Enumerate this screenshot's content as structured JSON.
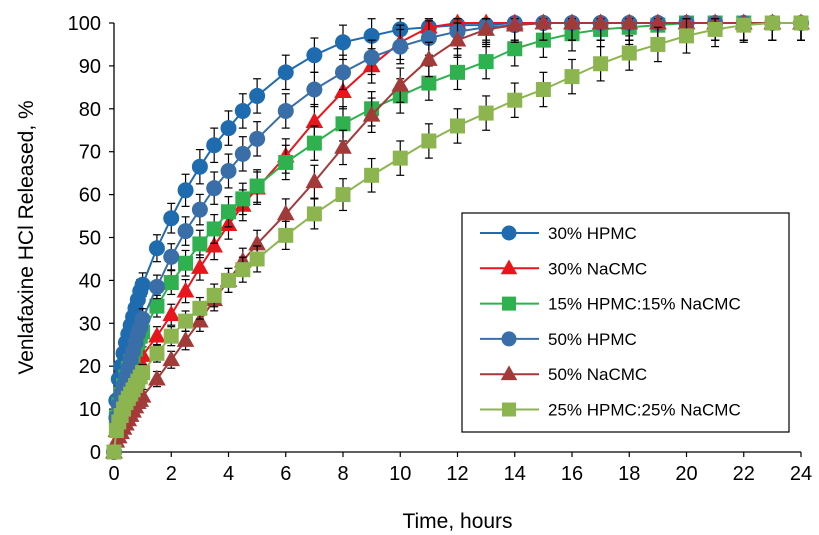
{
  "chart_data": {
    "type": "line",
    "title": "",
    "xlabel": "Time, hours",
    "ylabel": "Venlafaxine HCl Released, %",
    "xlim": [
      0,
      24
    ],
    "ylim": [
      0,
      100
    ],
    "x_ticks": [
      0,
      2,
      4,
      6,
      8,
      10,
      12,
      14,
      16,
      18,
      20,
      22,
      24
    ],
    "y_ticks": [
      0,
      10,
      20,
      30,
      40,
      50,
      60,
      70,
      80,
      90,
      100
    ],
    "grid": false,
    "error_bars": true,
    "legend_position": "right-middle",
    "series": [
      {
        "name": "30% HPMC",
        "marker": "circle",
        "color": "#1f6bb0",
        "x": [
          0,
          0.083,
          0.167,
          0.25,
          0.333,
          0.417,
          0.5,
          0.583,
          0.667,
          0.75,
          0.833,
          0.917,
          1,
          1.5,
          2,
          2.5,
          3,
          3.5,
          4,
          4.5,
          5,
          6,
          7,
          8,
          9,
          10,
          11,
          12,
          13,
          14,
          15,
          16,
          17,
          18,
          19,
          20,
          21,
          22,
          23,
          24
        ],
        "y": [
          0,
          12,
          17,
          20,
          23,
          25.5,
          27.5,
          29.5,
          31.5,
          33.5,
          35.5,
          37.5,
          39,
          47.5,
          54.5,
          61,
          66.5,
          71.5,
          75.5,
          79.5,
          83,
          88.5,
          92.5,
          95.5,
          97,
          98.5,
          99,
          99.5,
          99.5,
          100,
          100,
          100,
          100,
          100,
          100,
          100,
          100,
          100,
          100,
          100
        ]
      },
      {
        "name": "30% NaCMC",
        "marker": "triangle",
        "color": "#e8151d",
        "x": [
          0,
          0.083,
          0.167,
          0.25,
          0.333,
          0.417,
          0.5,
          0.583,
          0.667,
          0.75,
          0.833,
          0.917,
          1,
          1.5,
          2,
          2.5,
          3,
          3.5,
          4,
          4.5,
          5,
          6,
          7,
          8,
          9,
          10,
          11,
          12,
          13,
          14,
          15,
          16,
          17,
          18,
          19,
          20,
          21,
          22,
          23,
          24
        ],
        "y": [
          0,
          5,
          7,
          9,
          10.5,
          12,
          13.5,
          15,
          16.5,
          18,
          19.5,
          21,
          22.5,
          27,
          32,
          37.5,
          43,
          48,
          53,
          57.5,
          61.5,
          69,
          77,
          84,
          90,
          95.5,
          99,
          100,
          100,
          100,
          100,
          100,
          100,
          100,
          100,
          100,
          100,
          100,
          100,
          100
        ]
      },
      {
        "name": "15% HPMC:15% NaCMC",
        "marker": "square",
        "color": "#2eb14e",
        "x": [
          0,
          0.083,
          0.167,
          0.25,
          0.333,
          0.417,
          0.5,
          0.583,
          0.667,
          0.75,
          0.833,
          0.917,
          1,
          1.5,
          2,
          2.5,
          3,
          3.5,
          4,
          4.5,
          5,
          6,
          7,
          8,
          9,
          10,
          11,
          12,
          13,
          14,
          15,
          16,
          17,
          18,
          19,
          20,
          21,
          22,
          23,
          24
        ],
        "y": [
          0,
          8,
          11,
          13.5,
          15.5,
          17.5,
          19.5,
          21,
          22.5,
          24,
          25.5,
          27,
          28,
          34,
          39.5,
          44,
          48.5,
          52,
          56,
          59,
          62,
          67.5,
          72,
          76.5,
          80,
          83,
          86,
          88.5,
          91,
          94,
          96,
          97.5,
          98.5,
          99,
          99.5,
          100,
          100,
          100,
          100,
          100
        ]
      },
      {
        "name": "50% HPMC",
        "marker": "circle",
        "color": "#3a6ea8",
        "x": [
          0,
          0.083,
          0.167,
          0.25,
          0.333,
          0.417,
          0.5,
          0.583,
          0.667,
          0.75,
          0.833,
          0.917,
          1,
          1.5,
          2,
          2.5,
          3,
          3.5,
          4,
          4.5,
          5,
          6,
          7,
          8,
          9,
          10,
          11,
          12,
          13,
          14,
          15,
          16,
          17,
          18,
          19,
          20,
          21,
          22,
          23,
          24
        ],
        "y": [
          0,
          8,
          11,
          13.5,
          15.5,
          17.5,
          19.5,
          21.5,
          23.5,
          25.5,
          27.5,
          29,
          31,
          38.5,
          45.5,
          51.5,
          56.5,
          61.5,
          65.5,
          69.5,
          73,
          79.5,
          84.5,
          88.5,
          92,
          94.5,
          96.5,
          98,
          99,
          99.5,
          100,
          100,
          100,
          100,
          100,
          100,
          100,
          100,
          100,
          100
        ]
      },
      {
        "name": "50% NaCMC",
        "marker": "triangle",
        "color": "#a33a3a",
        "x": [
          0,
          0.083,
          0.167,
          0.25,
          0.333,
          0.417,
          0.5,
          0.583,
          0.667,
          0.75,
          0.833,
          0.917,
          1,
          1.5,
          2,
          2.5,
          3,
          3.5,
          4,
          4.5,
          5,
          6,
          7,
          8,
          9,
          10,
          11,
          12,
          13,
          14,
          15,
          16,
          17,
          18,
          19,
          20,
          21,
          22,
          23,
          24
        ],
        "y": [
          0,
          2.5,
          3.5,
          4.5,
          5.5,
          6.5,
          7.5,
          8.5,
          9.5,
          10.5,
          11.5,
          12,
          13,
          17,
          21.5,
          26,
          30.5,
          35.5,
          40,
          44.5,
          48.5,
          55.5,
          63,
          71,
          78.5,
          85.5,
          91.5,
          96,
          98.5,
          99.5,
          100,
          100,
          100,
          100,
          100,
          100,
          100,
          100,
          100,
          100
        ]
      },
      {
        "name": "25% HPMC:25% NaCMC",
        "marker": "square",
        "color": "#8cb550",
        "x": [
          0,
          0.083,
          0.167,
          0.25,
          0.333,
          0.417,
          0.5,
          0.583,
          0.667,
          0.75,
          0.833,
          0.917,
          1,
          1.5,
          2,
          2.5,
          3,
          3.5,
          4,
          4.5,
          5,
          6,
          7,
          8,
          9,
          10,
          11,
          12,
          13,
          14,
          15,
          16,
          17,
          18,
          19,
          20,
          21,
          22,
          23,
          24
        ],
        "y": [
          0,
          5,
          7,
          8.5,
          10,
          11.5,
          12.5,
          13.5,
          14.5,
          15.5,
          16.5,
          17.5,
          18.5,
          23,
          27,
          30.5,
          33.5,
          36.5,
          40,
          42.5,
          45,
          50.5,
          55.5,
          60,
          64.5,
          68.5,
          72.5,
          76,
          79,
          82,
          84.5,
          87.5,
          90.5,
          93,
          95,
          97,
          98.5,
          99.5,
          100,
          100
        ]
      }
    ]
  }
}
